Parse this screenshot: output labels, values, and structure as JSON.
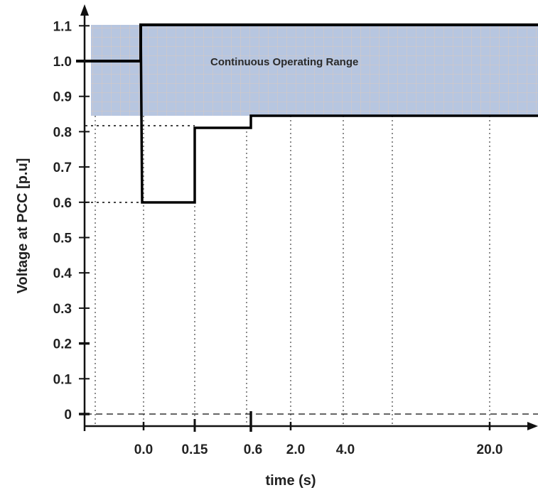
{
  "chart_data": {
    "type": "line",
    "title": "",
    "xlabel": "time (s)",
    "ylabel": "Voltage at PCC  [p.u]",
    "x_tick_labels": [
      "0.0",
      "0.15",
      "0.6",
      "2.0",
      "4.0",
      "20.0"
    ],
    "y_ticks": [
      0,
      0.1,
      0.2,
      0.3,
      0.4,
      0.5,
      0.6,
      0.7,
      0.8,
      0.9,
      1.0,
      1.1
    ],
    "y_tick_labels": [
      "0",
      "0.1",
      "0.2",
      "0.3",
      "0.4",
      "0.5",
      "0.6",
      "0.7",
      "0.8",
      "0.9",
      "1.0",
      "1.1"
    ],
    "ylim": [
      0,
      1.1
    ],
    "axis_scale_note": "x axis is non-uniform; tick labels only",
    "series": [
      {
        "points": [
          {
            "x": "start",
            "y": 1.0
          },
          {
            "x": "0.0",
            "y": 1.0
          },
          {
            "x": "0.0",
            "y": 1.1
          },
          {
            "x": "end",
            "y": 1.1
          }
        ]
      },
      {
        "points": [
          {
            "x": "0.0",
            "y": 1.1
          },
          {
            "x": "0.0",
            "y": 0.6
          },
          {
            "x": "0.15",
            "y": 0.6
          },
          {
            "x": "0.15",
            "y": 0.8
          },
          {
            "x": "0.6",
            "y": 0.8
          },
          {
            "x": "0.6",
            "y": 0.85
          },
          {
            "x": "end",
            "y": 0.85
          }
        ]
      }
    ],
    "region": {
      "label": "Continuous Operating Range",
      "y_range": [
        0.85,
        1.1
      ],
      "fill_color": "#b7c6e0",
      "grid_color": "#d9c8c0"
    },
    "reference_lines": [
      {
        "y": 0.6,
        "style": "dotted"
      },
      {
        "y": 0.81,
        "style": "dotted"
      },
      {
        "y": 0,
        "style": "dashed"
      }
    ],
    "grid": "dotted verticals at x ticks",
    "line_color": "#000000",
    "axis_color": "#111111"
  }
}
